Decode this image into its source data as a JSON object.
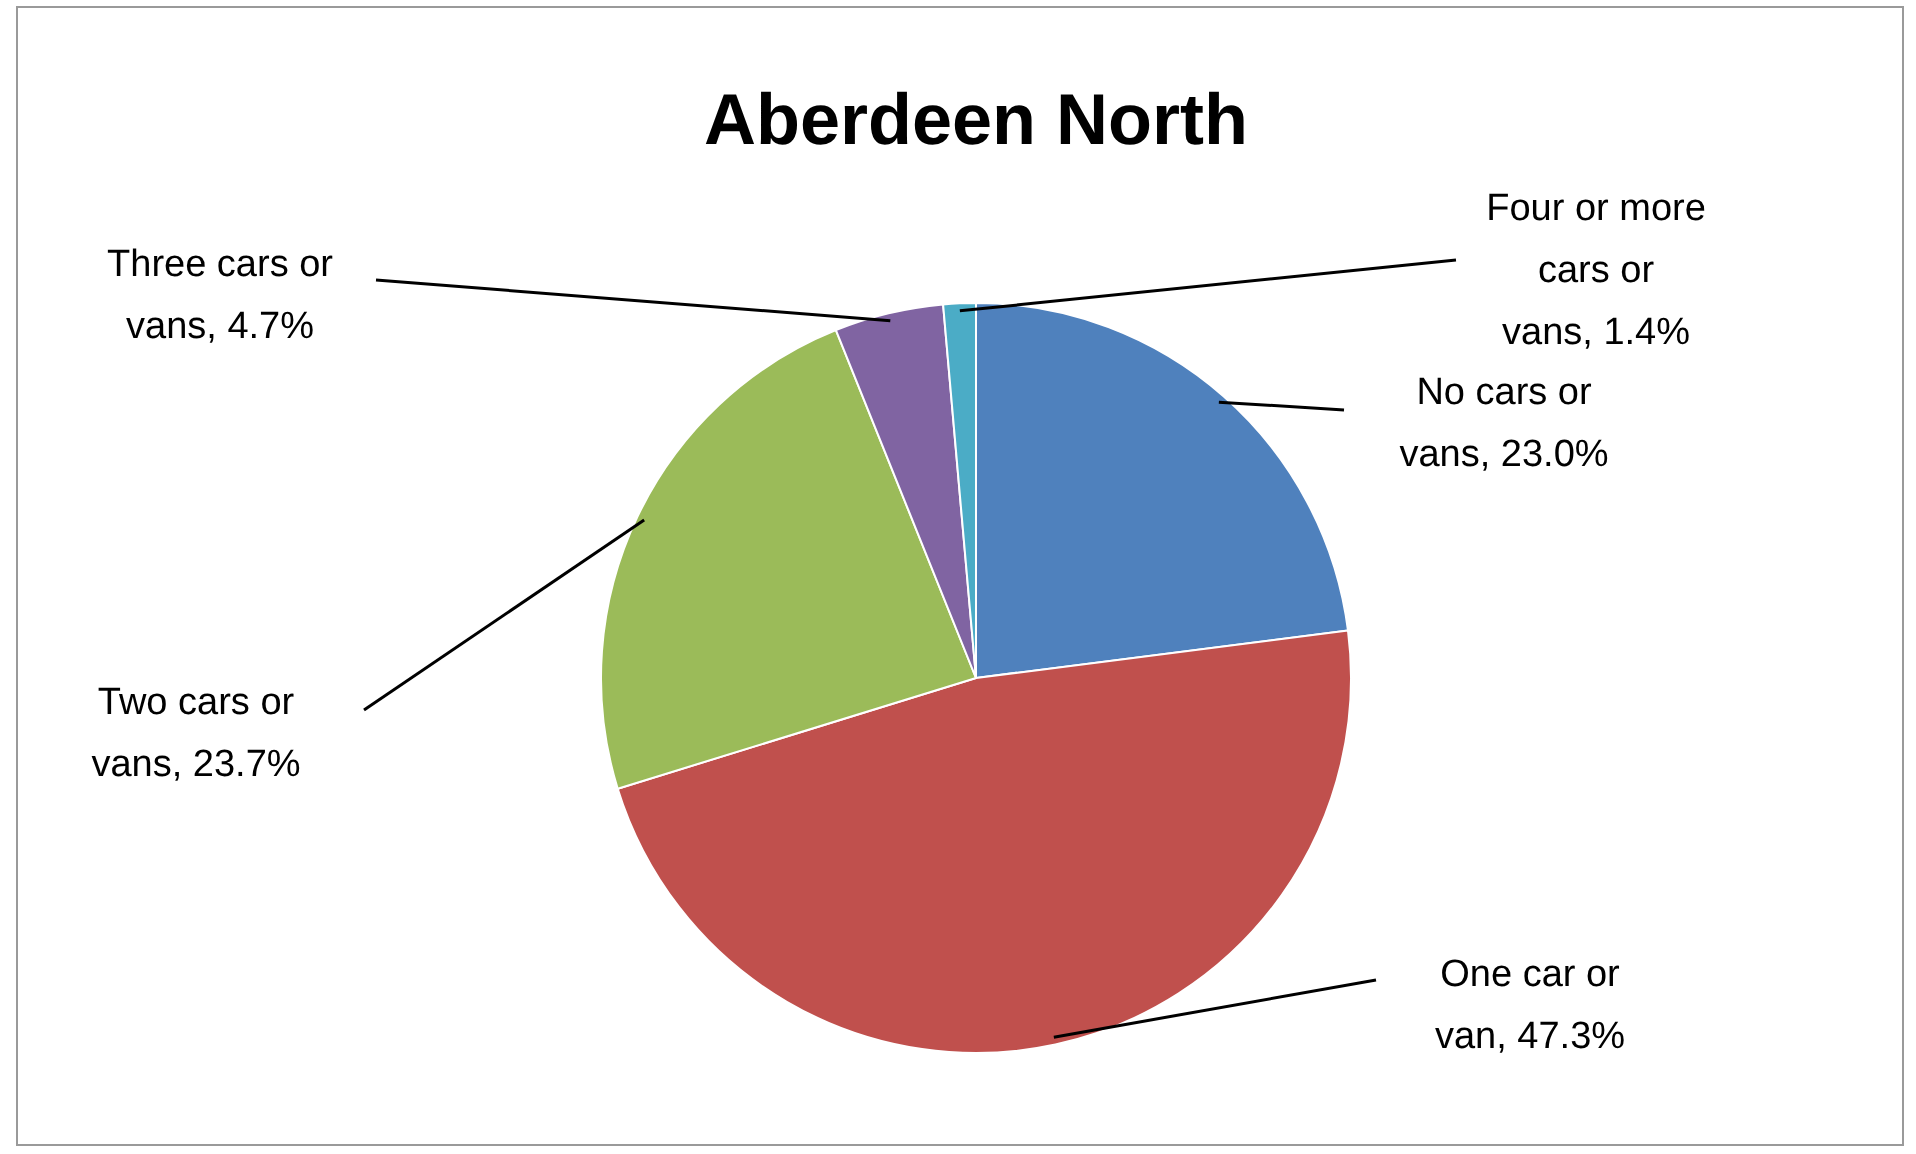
{
  "chart_data": {
    "type": "pie",
    "title": "Aberdeen North",
    "categories": [
      "No cars or vans",
      "One car or van",
      "Two cars or vans",
      "Three cars or vans",
      "Four or more cars or vans"
    ],
    "values": [
      23.0,
      47.3,
      23.7,
      4.7,
      1.4
    ],
    "value_labels": [
      "23.0%",
      "47.3%",
      "23.7%",
      "4.7%",
      "1.4%"
    ],
    "colors": [
      "#4f81bd",
      "#c0504d",
      "#9bbb59",
      "#8064a2",
      "#4bacc6"
    ],
    "legend": false
  }
}
